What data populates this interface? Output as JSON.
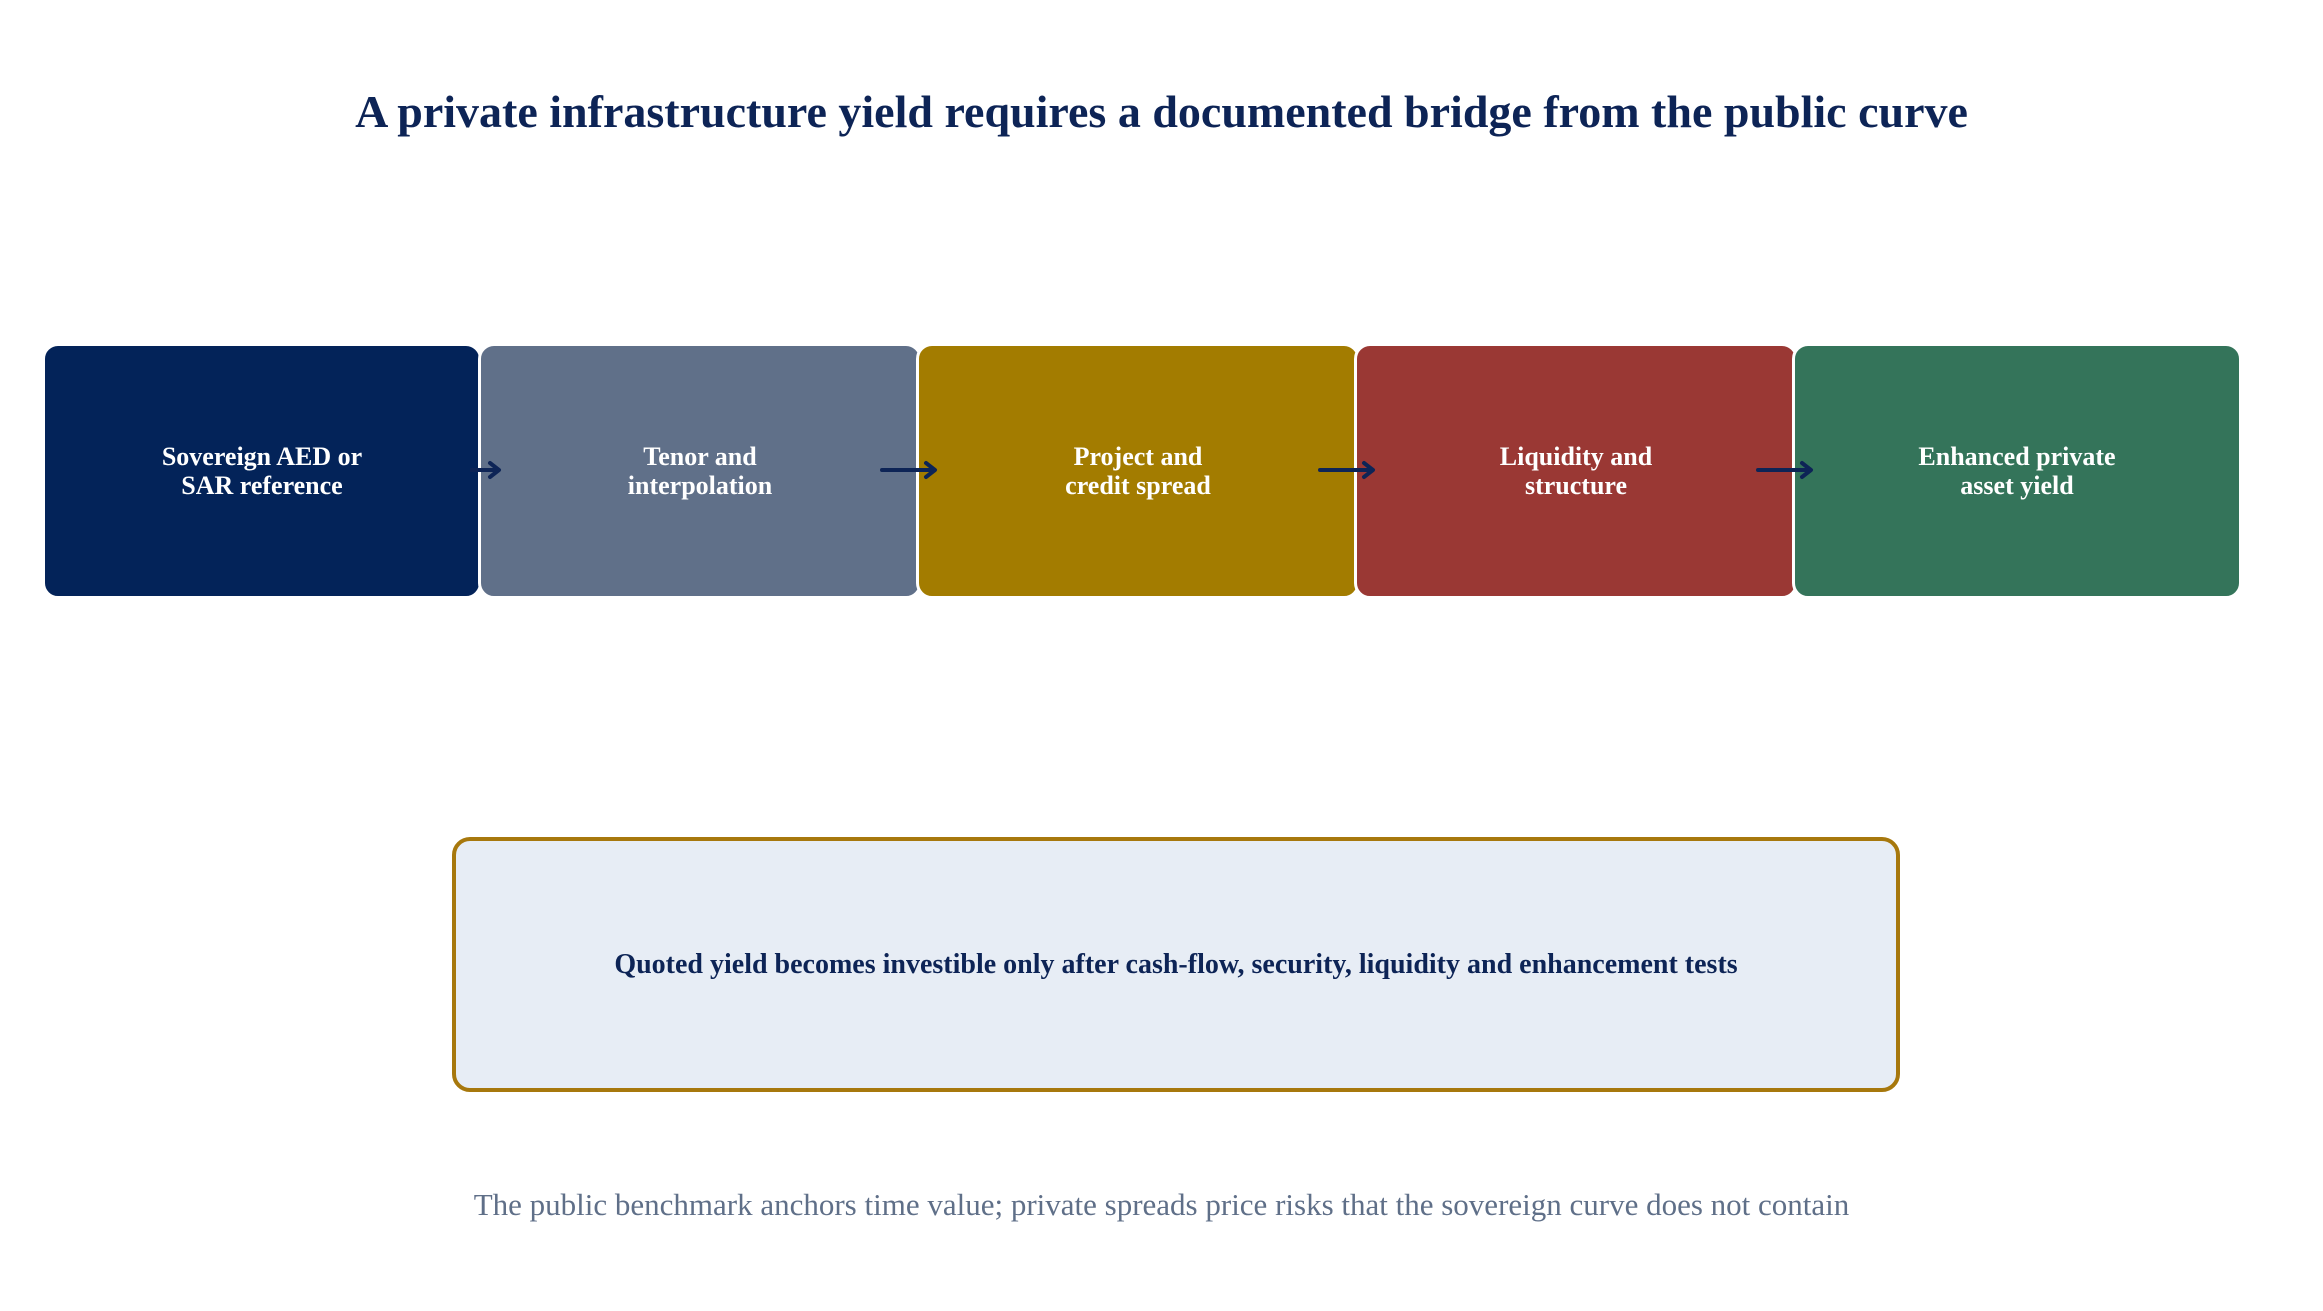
{
  "title": "A private infrastructure yield requires a documented bridge from the public curve",
  "stages": [
    {
      "line1": "Sovereign AED or",
      "line2": "SAR reference",
      "color": "#032359"
    },
    {
      "line1": "Tenor and",
      "line2": "interpolation",
      "color": "#607089"
    },
    {
      "line1": "Project and",
      "line2": "credit spread",
      "color": "#a37c00"
    },
    {
      "line1": "Liquidity and",
      "line2": "structure",
      "color": "#9a3834"
    },
    {
      "line1": "Enhanced private",
      "line2": "asset yield",
      "color": "#34745a"
    }
  ],
  "arrow_color": "#0d2456",
  "callout": {
    "text": "Quoted yield becomes investible only after cash-flow, security, liquidity and enhancement tests",
    "border_color": "#a7780d",
    "fill_color": "#e7edf5"
  },
  "footer": "The public benchmark anchors time value; private spreads price risks that the sovereign curve does not contain"
}
